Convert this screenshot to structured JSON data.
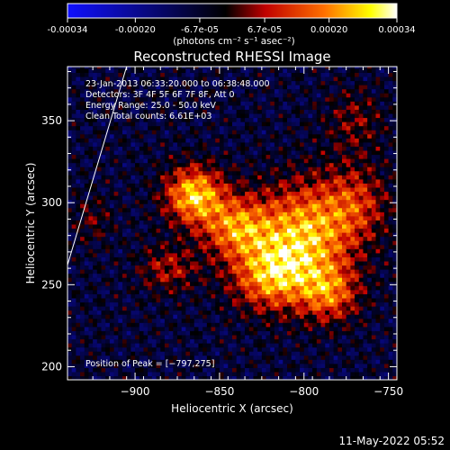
{
  "chart_data": {
    "type": "heatmap",
    "title": "Reconstructed RHESSI Image",
    "colorbar": {
      "ticks": [
        "-0.00034",
        "-0.00020",
        "-6.7e-05",
        "6.7e-05",
        "0.00020",
        "0.00034"
      ],
      "tick_values": [
        -0.00034,
        -0.0002,
        -6.7e-05,
        6.7e-05,
        0.0002,
        0.00034
      ],
      "range": [
        -0.00034,
        0.00034
      ],
      "unit_label": "(photons cm⁻² s⁻¹ asec⁻²)",
      "colormap": [
        "#1010ff",
        "#000000",
        "#c00000",
        "#ff7000",
        "#ffff00",
        "#ffffff"
      ]
    },
    "xlabel": "Heliocentric X (arcsec)",
    "ylabel": "Heliocentric Y (arcsec)",
    "xlim": [
      -940,
      -745
    ],
    "ylim": [
      192,
      383
    ],
    "xticks": [
      -900,
      -850,
      -800,
      -750
    ],
    "yticks": [
      200,
      250,
      300,
      350
    ],
    "xtick_labels": [
      "−900",
      "−850",
      "−800",
      "−750"
    ],
    "ytick_labels": [
      "200",
      "250",
      "300",
      "350"
    ],
    "annotations": [
      "23-Jan-2013 06:33:20.000 to 06:38:48.000",
      "Detectors: 3F 4F 5F 6F 7F 8F, Att 0",
      "Energy Range: 25.0 - 50.0 keV",
      "Clean     Total counts: 6.61E+03"
    ],
    "peak_label": "Position of Peak = [−797,275]",
    "peak_position": [
      -797,
      275
    ],
    "sources": [
      {
        "x": -865,
        "y": 305,
        "sx": 12,
        "sy": 12,
        "amp": 0.00034
      },
      {
        "x": -840,
        "y": 285,
        "sx": 14,
        "sy": 13,
        "amp": 0.00026
      },
      {
        "x": -800,
        "y": 280,
        "sx": 20,
        "sy": 22,
        "amp": 0.00032
      },
      {
        "x": -820,
        "y": 255,
        "sx": 16,
        "sy": 14,
        "amp": 0.00026
      },
      {
        "x": -785,
        "y": 245,
        "sx": 12,
        "sy": 12,
        "amp": 0.00022
      },
      {
        "x": -770,
        "y": 300,
        "sx": 14,
        "sy": 16,
        "amp": 0.00016
      },
      {
        "x": -880,
        "y": 260,
        "sx": 12,
        "sy": 10,
        "amp": 0.00014
      },
      {
        "x": -770,
        "y": 350,
        "sx": 12,
        "sy": 14,
        "amp": 0.0001
      },
      {
        "x": -925,
        "y": 290,
        "sx": 8,
        "sy": 10,
        "amp": 8e-05
      }
    ],
    "limb_line": {
      "x": [
        -940,
        -905
      ],
      "y": [
        262,
        383
      ]
    }
  },
  "footer_timestamp": "11-May-2022 05:52"
}
